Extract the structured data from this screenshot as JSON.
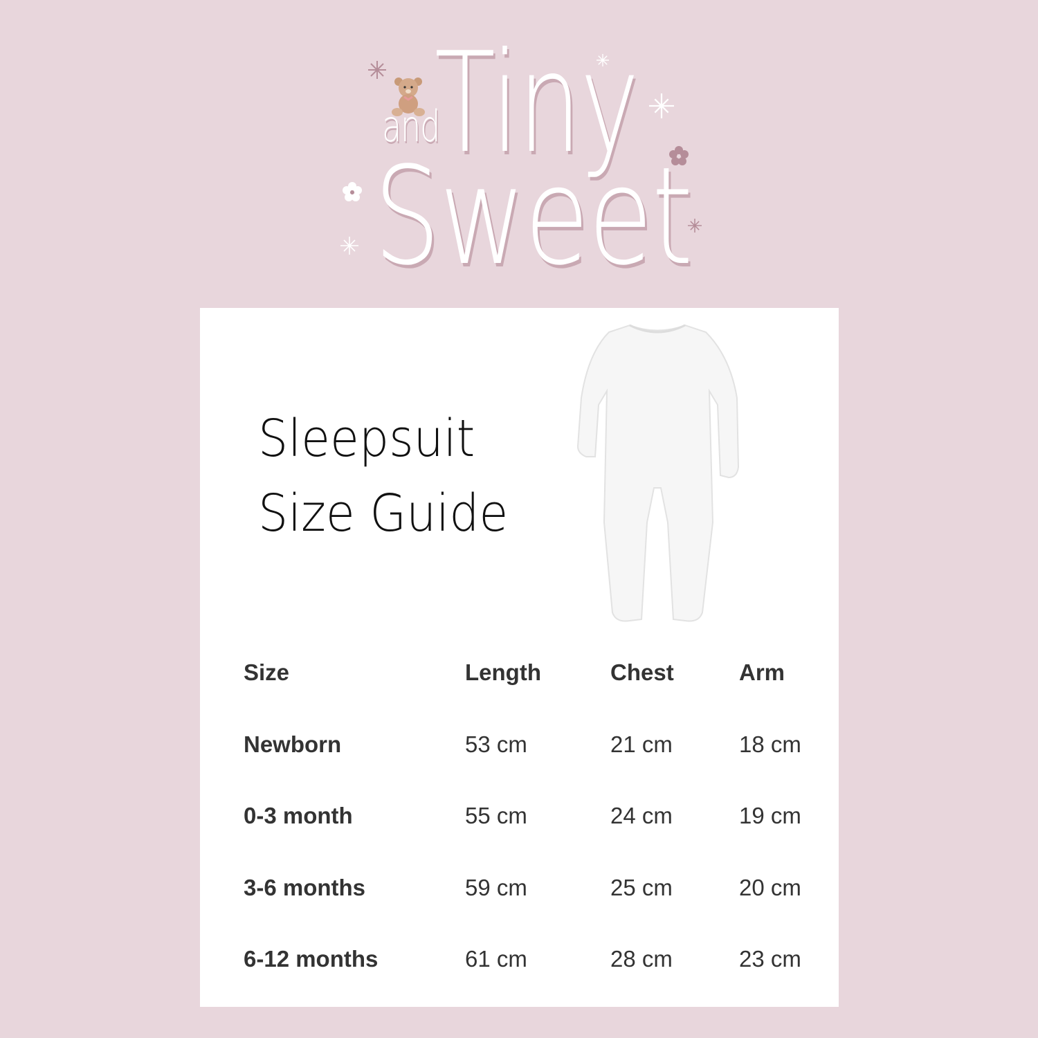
{
  "logo": {
    "and": "and",
    "tiny": "Tiny",
    "sweet": "Sweet",
    "icon": "teddy-bear-icon",
    "colors": {
      "background": "#e8d6dc",
      "text": "#ffffff",
      "shadow": "#c9a9b3"
    }
  },
  "card": {
    "title_line1": "Sleepsuit",
    "title_line2": "Size Guide",
    "image": "sleepsuit-icon",
    "table": {
      "headers": [
        "Size",
        "Length",
        "Chest",
        "Arm"
      ],
      "rows": [
        [
          "Newborn",
          "53 cm",
          "21 cm",
          "18 cm"
        ],
        [
          "0-3 month",
          "55 cm",
          "24 cm",
          "19 cm"
        ],
        [
          "3-6 months",
          "59 cm",
          "25 cm",
          "20 cm"
        ],
        [
          "6-12 months",
          "61 cm",
          "28 cm",
          "23 cm"
        ]
      ]
    }
  }
}
